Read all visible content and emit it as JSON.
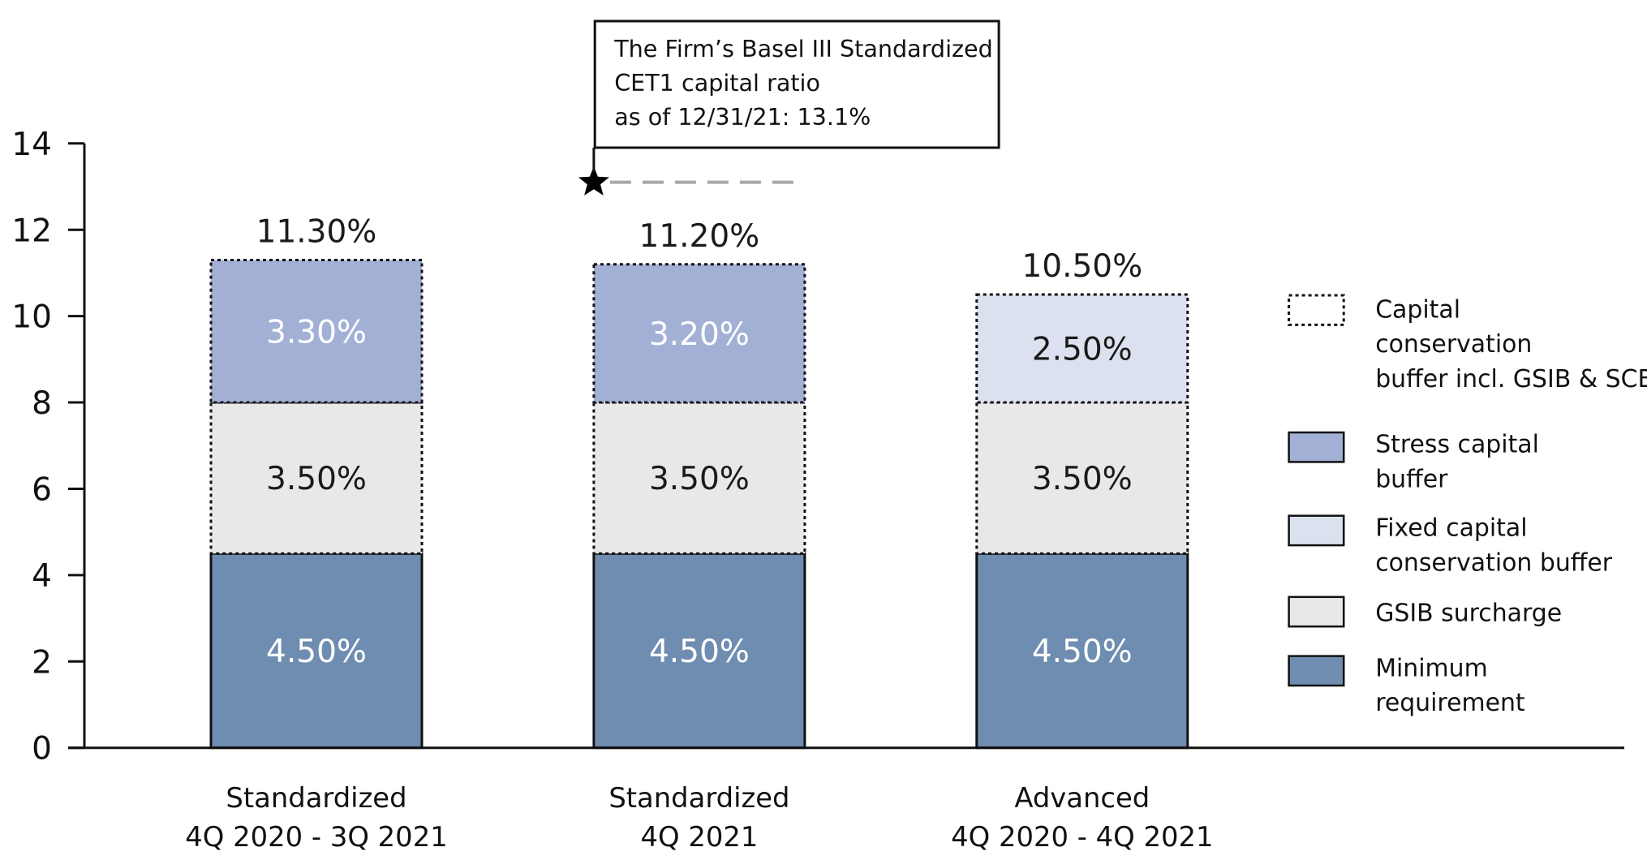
{
  "chart_data": {
    "type": "bar",
    "stacked": true,
    "categories": [
      [
        "Standardized",
        "4Q 2020 - 3Q 2021"
      ],
      [
        "Standardized",
        "4Q 2021"
      ],
      [
        "Advanced",
        "4Q 2020 - 4Q 2021"
      ]
    ],
    "ylim": [
      0,
      14
    ],
    "yticks": [
      0,
      2,
      4,
      6,
      8,
      10,
      12,
      14
    ],
    "series": [
      {
        "key": "minimum",
        "name": "Minimum requirement",
        "values": [
          4.5,
          4.5,
          4.5
        ],
        "labels": [
          "4.50%",
          "4.50%",
          "4.50%"
        ]
      },
      {
        "key": "gsib",
        "name": "GSIB surcharge",
        "values": [
          3.5,
          3.5,
          3.5
        ],
        "labels": [
          "3.50%",
          "3.50%",
          "3.50%"
        ]
      },
      {
        "key": "stress",
        "name": "Stress capital buffer",
        "values": [
          3.3,
          3.2,
          0
        ],
        "labels": [
          "3.30%",
          "3.20%",
          ""
        ]
      },
      {
        "key": "fixed",
        "name": "Fixed capital conservation buffer",
        "values": [
          0,
          0,
          2.5
        ],
        "labels": [
          "",
          "",
          "2.50%"
        ]
      }
    ],
    "totals": [
      "11.30%",
      "11.20%",
      "10.50%"
    ],
    "total_values": [
      11.3,
      11.2,
      10.5
    ],
    "legend_position": "right",
    "legend": [
      {
        "key": "ccb",
        "style": "dotted",
        "lines": [
          "Capital",
          "conservation",
          "buffer incl. GSIB & SCB"
        ]
      },
      {
        "key": "stress",
        "style": "fill",
        "lines": [
          "Stress capital",
          "buffer"
        ]
      },
      {
        "key": "fixed",
        "style": "fill",
        "lines": [
          "Fixed capital",
          "conservation buffer"
        ]
      },
      {
        "key": "gsib",
        "style": "fill",
        "lines": [
          "GSIB surcharge"
        ]
      },
      {
        "key": "minimum",
        "style": "fill",
        "lines": [
          "Minimum",
          "requirement"
        ]
      }
    ],
    "annotation": {
      "lines": [
        "The Firm’s Basel III Standardized",
        "CET1 capital ratio",
        "as of 12/31/21: 13.1%"
      ],
      "value": 13.1,
      "category_index": 1
    },
    "colors": {
      "minimum": "#6f8db0",
      "gsib": "#e8e8e8",
      "stress": "#a3b0d6",
      "fixed": "#dbe1ee",
      "label_on_dark": "#ffffff",
      "label_on_light": "#1a1a1a",
      "axis": "#111111",
      "reference_line": "#a8a8a8"
    }
  }
}
